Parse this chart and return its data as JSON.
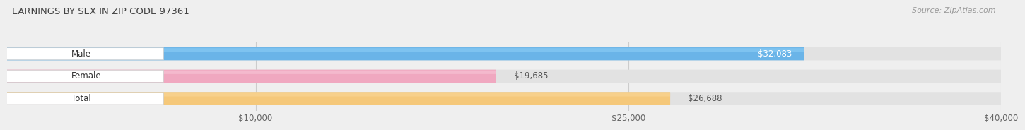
{
  "title": "EARNINGS BY SEX IN ZIP CODE 97361",
  "source": "Source: ZipAtlas.com",
  "categories": [
    "Male",
    "Female",
    "Total"
  ],
  "values": [
    32083,
    19685,
    26688
  ],
  "bar_colors": [
    "#6ab4e8",
    "#f0a8c0",
    "#f5c87a"
  ],
  "bar_highlight_colors": [
    "#90d0f8",
    "#f8c8d8",
    "#fad89a"
  ],
  "label_values": [
    "$32,083",
    "$19,685",
    "$26,688"
  ],
  "label_inside": [
    true,
    false,
    false
  ],
  "xmin": 0,
  "xmax": 40000,
  "xticks": [
    10000,
    25000,
    40000
  ],
  "xtick_labels": [
    "$10,000",
    "$25,000",
    "$40,000"
  ],
  "background_color": "#efefef",
  "bar_bg_color": "#e2e2e2"
}
